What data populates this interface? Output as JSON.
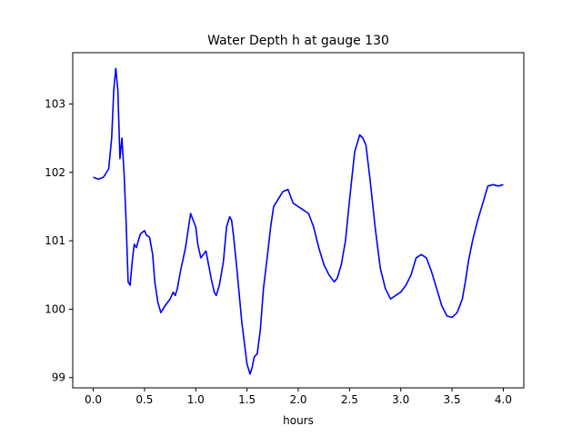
{
  "chart_data": {
    "type": "line",
    "title": "Water Depth h at gauge 130",
    "xlabel": "hours",
    "ylabel": "",
    "xlim": [
      -0.2,
      4.2
    ],
    "ylim": [
      98.85,
      103.75
    ],
    "xticks": [
      0.0,
      0.5,
      1.0,
      1.5,
      2.0,
      2.5,
      3.0,
      3.5,
      4.0
    ],
    "xtick_labels": [
      "0.0",
      "0.5",
      "1.0",
      "1.5",
      "2.0",
      "2.5",
      "3.0",
      "3.5",
      "4.0"
    ],
    "yticks": [
      99,
      100,
      101,
      102,
      103
    ],
    "ytick_labels": [
      "99",
      "100",
      "101",
      "102",
      "103"
    ],
    "grid": false,
    "line_color": "#0000ff",
    "series": [
      {
        "x": [
          0.0,
          0.05,
          0.1,
          0.15,
          0.18,
          0.2,
          0.22,
          0.24,
          0.26,
          0.28,
          0.3,
          0.32,
          0.34,
          0.36,
          0.38,
          0.4,
          0.42,
          0.44,
          0.46,
          0.5,
          0.52,
          0.55,
          0.58,
          0.6,
          0.63,
          0.66,
          0.7,
          0.75,
          0.78,
          0.8,
          0.82,
          0.85,
          0.9,
          0.95,
          1.0,
          1.02,
          1.05,
          1.1,
          1.15,
          1.18,
          1.2,
          1.23,
          1.27,
          1.3,
          1.33,
          1.35,
          1.37,
          1.4,
          1.45,
          1.5,
          1.53,
          1.55,
          1.57,
          1.6,
          1.63,
          1.66,
          1.7,
          1.73,
          1.76,
          1.8,
          1.85,
          1.9,
          1.95,
          2.0,
          2.05,
          2.1,
          2.15,
          2.2,
          2.25,
          2.3,
          2.35,
          2.38,
          2.42,
          2.46,
          2.5,
          2.55,
          2.6,
          2.63,
          2.66,
          2.7,
          2.75,
          2.8,
          2.85,
          2.9,
          2.95,
          3.0,
          3.05,
          3.1,
          3.15,
          3.2,
          3.25,
          3.3,
          3.35,
          3.4,
          3.45,
          3.5,
          3.55,
          3.6,
          3.63,
          3.66,
          3.7,
          3.75,
          3.8,
          3.85,
          3.9,
          3.95,
          4.0
        ],
        "y": [
          101.93,
          101.9,
          101.93,
          102.05,
          102.5,
          103.2,
          103.52,
          103.2,
          102.2,
          102.5,
          102.0,
          101.3,
          100.4,
          100.35,
          100.7,
          100.95,
          100.9,
          101.0,
          101.1,
          101.15,
          101.08,
          101.05,
          100.8,
          100.4,
          100.1,
          99.95,
          100.05,
          100.15,
          100.25,
          100.2,
          100.3,
          100.55,
          100.9,
          101.4,
          101.2,
          100.95,
          100.75,
          100.85,
          100.45,
          100.25,
          100.2,
          100.35,
          100.7,
          101.2,
          101.35,
          101.3,
          101.05,
          100.6,
          99.8,
          99.2,
          99.05,
          99.15,
          99.3,
          99.35,
          99.7,
          100.3,
          100.8,
          101.2,
          101.5,
          101.6,
          101.72,
          101.75,
          101.55,
          101.5,
          101.45,
          101.4,
          101.2,
          100.9,
          100.65,
          100.5,
          100.4,
          100.45,
          100.65,
          101.0,
          101.6,
          102.3,
          102.55,
          102.5,
          102.4,
          101.9,
          101.2,
          100.6,
          100.3,
          100.15,
          100.2,
          100.25,
          100.35,
          100.5,
          100.75,
          100.8,
          100.75,
          100.55,
          100.3,
          100.05,
          99.9,
          99.88,
          99.95,
          100.15,
          100.4,
          100.7,
          101.0,
          101.3,
          101.55,
          101.8,
          101.82,
          101.8,
          101.82
        ]
      }
    ]
  }
}
